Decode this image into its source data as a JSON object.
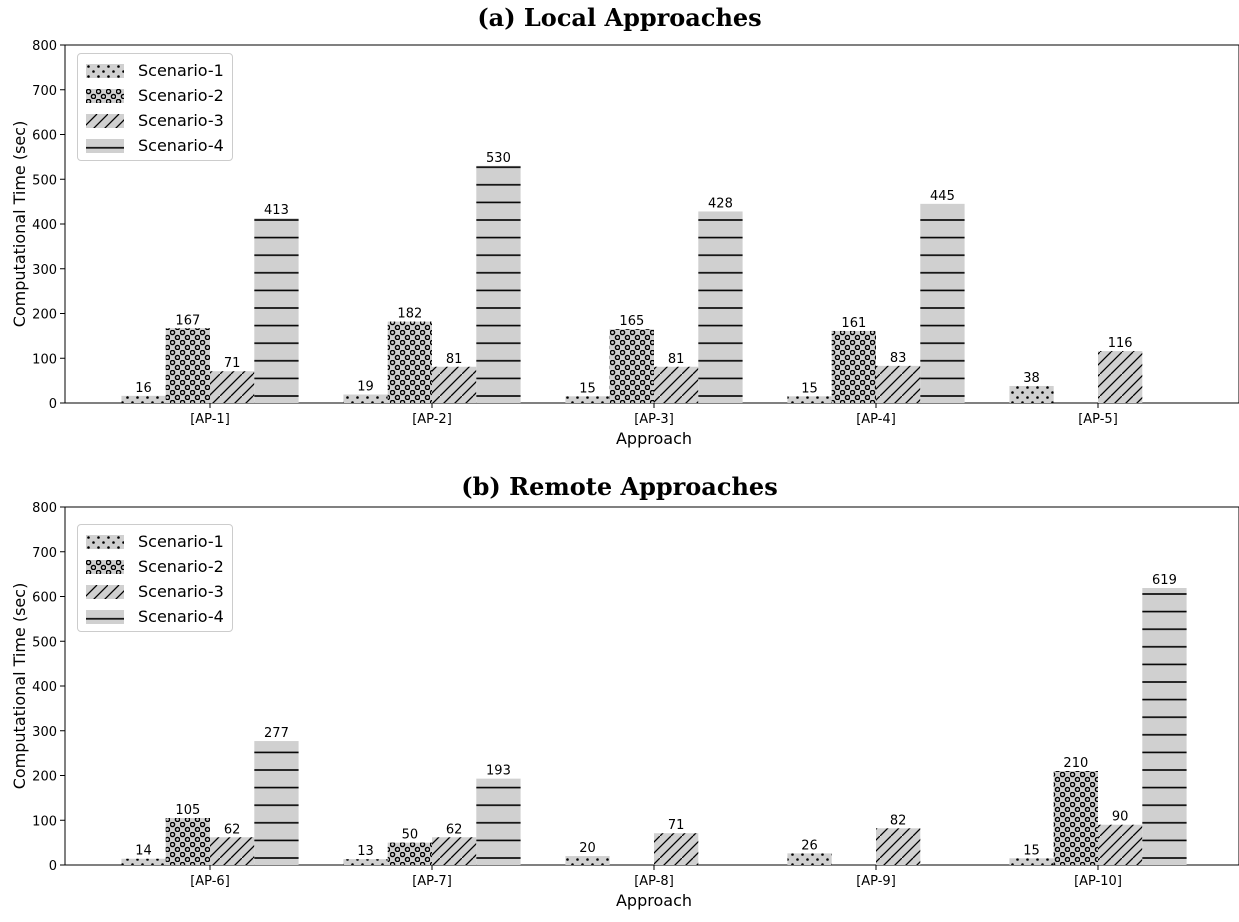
{
  "chart_data": [
    {
      "type": "bar",
      "title": "(a) Local Approaches",
      "xlabel": "Approach",
      "ylabel": "Computational Time (sec)",
      "ylim": [
        0,
        800
      ],
      "yticks": [
        0,
        100,
        200,
        300,
        400,
        500,
        600,
        700,
        800
      ],
      "categories": [
        "[AP-1]",
        "[AP-2]",
        "[AP-3]",
        "[AP-4]",
        "[AP-5]"
      ],
      "series": [
        {
          "name": "Scenario-1",
          "values": [
            16,
            19,
            15,
            15,
            38
          ]
        },
        {
          "name": "Scenario-2",
          "values": [
            167,
            182,
            165,
            161,
            null
          ]
        },
        {
          "name": "Scenario-3",
          "values": [
            71,
            81,
            81,
            83,
            116
          ]
        },
        {
          "name": "Scenario-4",
          "values": [
            413,
            530,
            428,
            445,
            null
          ]
        }
      ],
      "legend_position": "upper-left",
      "bar_color": "#d0d0d0",
      "grid": false
    },
    {
      "type": "bar",
      "title": "(b) Remote Approaches",
      "xlabel": "Approach",
      "ylabel": "Computational Time (sec)",
      "ylim": [
        0,
        800
      ],
      "yticks": [
        0,
        100,
        200,
        300,
        400,
        500,
        600,
        700,
        800
      ],
      "categories": [
        "[AP-6]",
        "[AP-7]",
        "[AP-8]",
        "[AP-9]",
        "[AP-10]"
      ],
      "series": [
        {
          "name": "Scenario-1",
          "values": [
            14,
            13,
            20,
            26,
            15
          ]
        },
        {
          "name": "Scenario-2",
          "values": [
            105,
            50,
            null,
            null,
            210
          ]
        },
        {
          "name": "Scenario-3",
          "values": [
            62,
            62,
            71,
            82,
            90
          ]
        },
        {
          "name": "Scenario-4",
          "values": [
            277,
            193,
            null,
            null,
            619
          ]
        }
      ],
      "legend_position": "upper-left",
      "bar_color": "#d0d0d0",
      "grid": false
    }
  ]
}
